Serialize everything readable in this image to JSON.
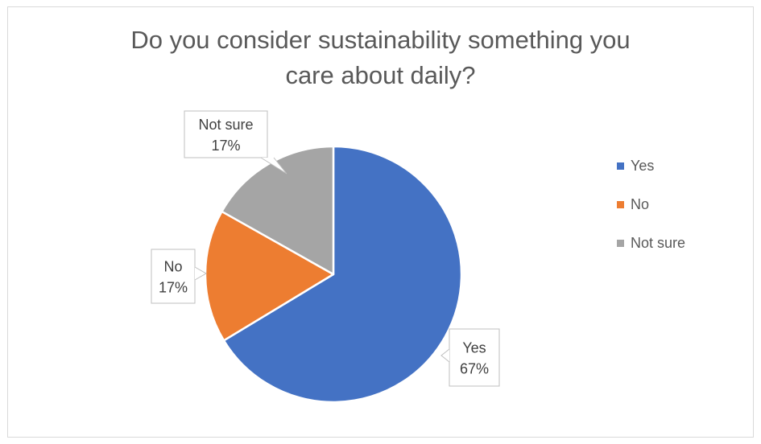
{
  "chart_data": {
    "type": "pie",
    "title": "Do you consider sustainability something you care about daily?",
    "title_lines": [
      "Do you consider sustainability something you",
      "care about daily?"
    ],
    "categories": [
      "Yes",
      "No",
      "Not sure"
    ],
    "values": [
      67,
      17,
      17
    ],
    "data_labels": [
      {
        "name": "Yes",
        "value": "67%"
      },
      {
        "name": "No",
        "value": "17%"
      },
      {
        "name": "Not sure",
        "value": "17%"
      }
    ],
    "colors": [
      "#4472c4",
      "#ed7d31",
      "#a5a5a5"
    ],
    "legend_position": "right"
  }
}
